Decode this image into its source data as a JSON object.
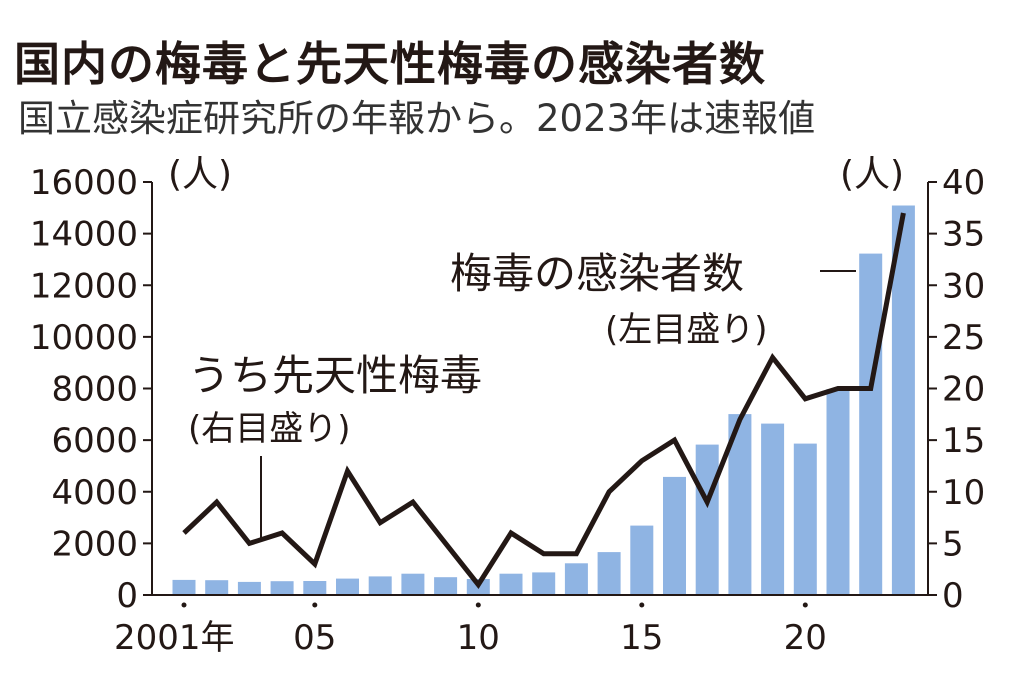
{
  "header": {
    "title": "国内の梅毒と先天性梅毒の感染者数",
    "subtitle": "国立感染症研究所の年報から。2023年は速報値"
  },
  "chart_data": {
    "type": "bar+line",
    "x": [
      2001,
      2002,
      2003,
      2004,
      2005,
      2006,
      2007,
      2008,
      2009,
      2010,
      2011,
      2012,
      2013,
      2014,
      2015,
      2016,
      2017,
      2018,
      2019,
      2020,
      2021,
      2022,
      2023
    ],
    "x_tick_labels": [
      {
        "x": 2001,
        "label": "2001年"
      },
      {
        "x": 2005,
        "label": "05"
      },
      {
        "x": 2010,
        "label": "10"
      },
      {
        "x": 2015,
        "label": "15"
      },
      {
        "x": 2020,
        "label": "20"
      }
    ],
    "series": [
      {
        "name": "梅毒の感染者数",
        "note": "(左目盛り)",
        "type": "bar",
        "axis": "left",
        "color": "#8FB4E3",
        "values": [
          585,
          575,
          509,
          533,
          543,
          637,
          719,
          827,
          691,
          621,
          827,
          875,
          1228,
          1661,
          2690,
          4575,
          5826,
          7007,
          6642,
          5867,
          7978,
          13228,
          15090
        ]
      },
      {
        "name": "うち先天性梅毒",
        "note": "(右目盛り)",
        "type": "line",
        "axis": "right",
        "color": "#231815",
        "values": [
          6,
          9,
          5,
          6,
          3,
          12,
          7,
          9,
          5,
          1,
          6,
          4,
          4,
          10,
          13,
          15,
          9,
          17,
          23,
          19,
          20,
          20,
          37
        ]
      }
    ],
    "left_axis": {
      "unit": "(人)",
      "range": [
        0,
        16000
      ],
      "ticks": [
        "0",
        "2000",
        "4000",
        "6000",
        "8000",
        "10000",
        "12000",
        "14000",
        "16000"
      ]
    },
    "right_axis": {
      "unit": "(人)",
      "range": [
        0,
        40
      ],
      "ticks": [
        "0",
        "5",
        "10",
        "15",
        "20",
        "25",
        "30",
        "35",
        "40"
      ]
    },
    "grid": false
  }
}
